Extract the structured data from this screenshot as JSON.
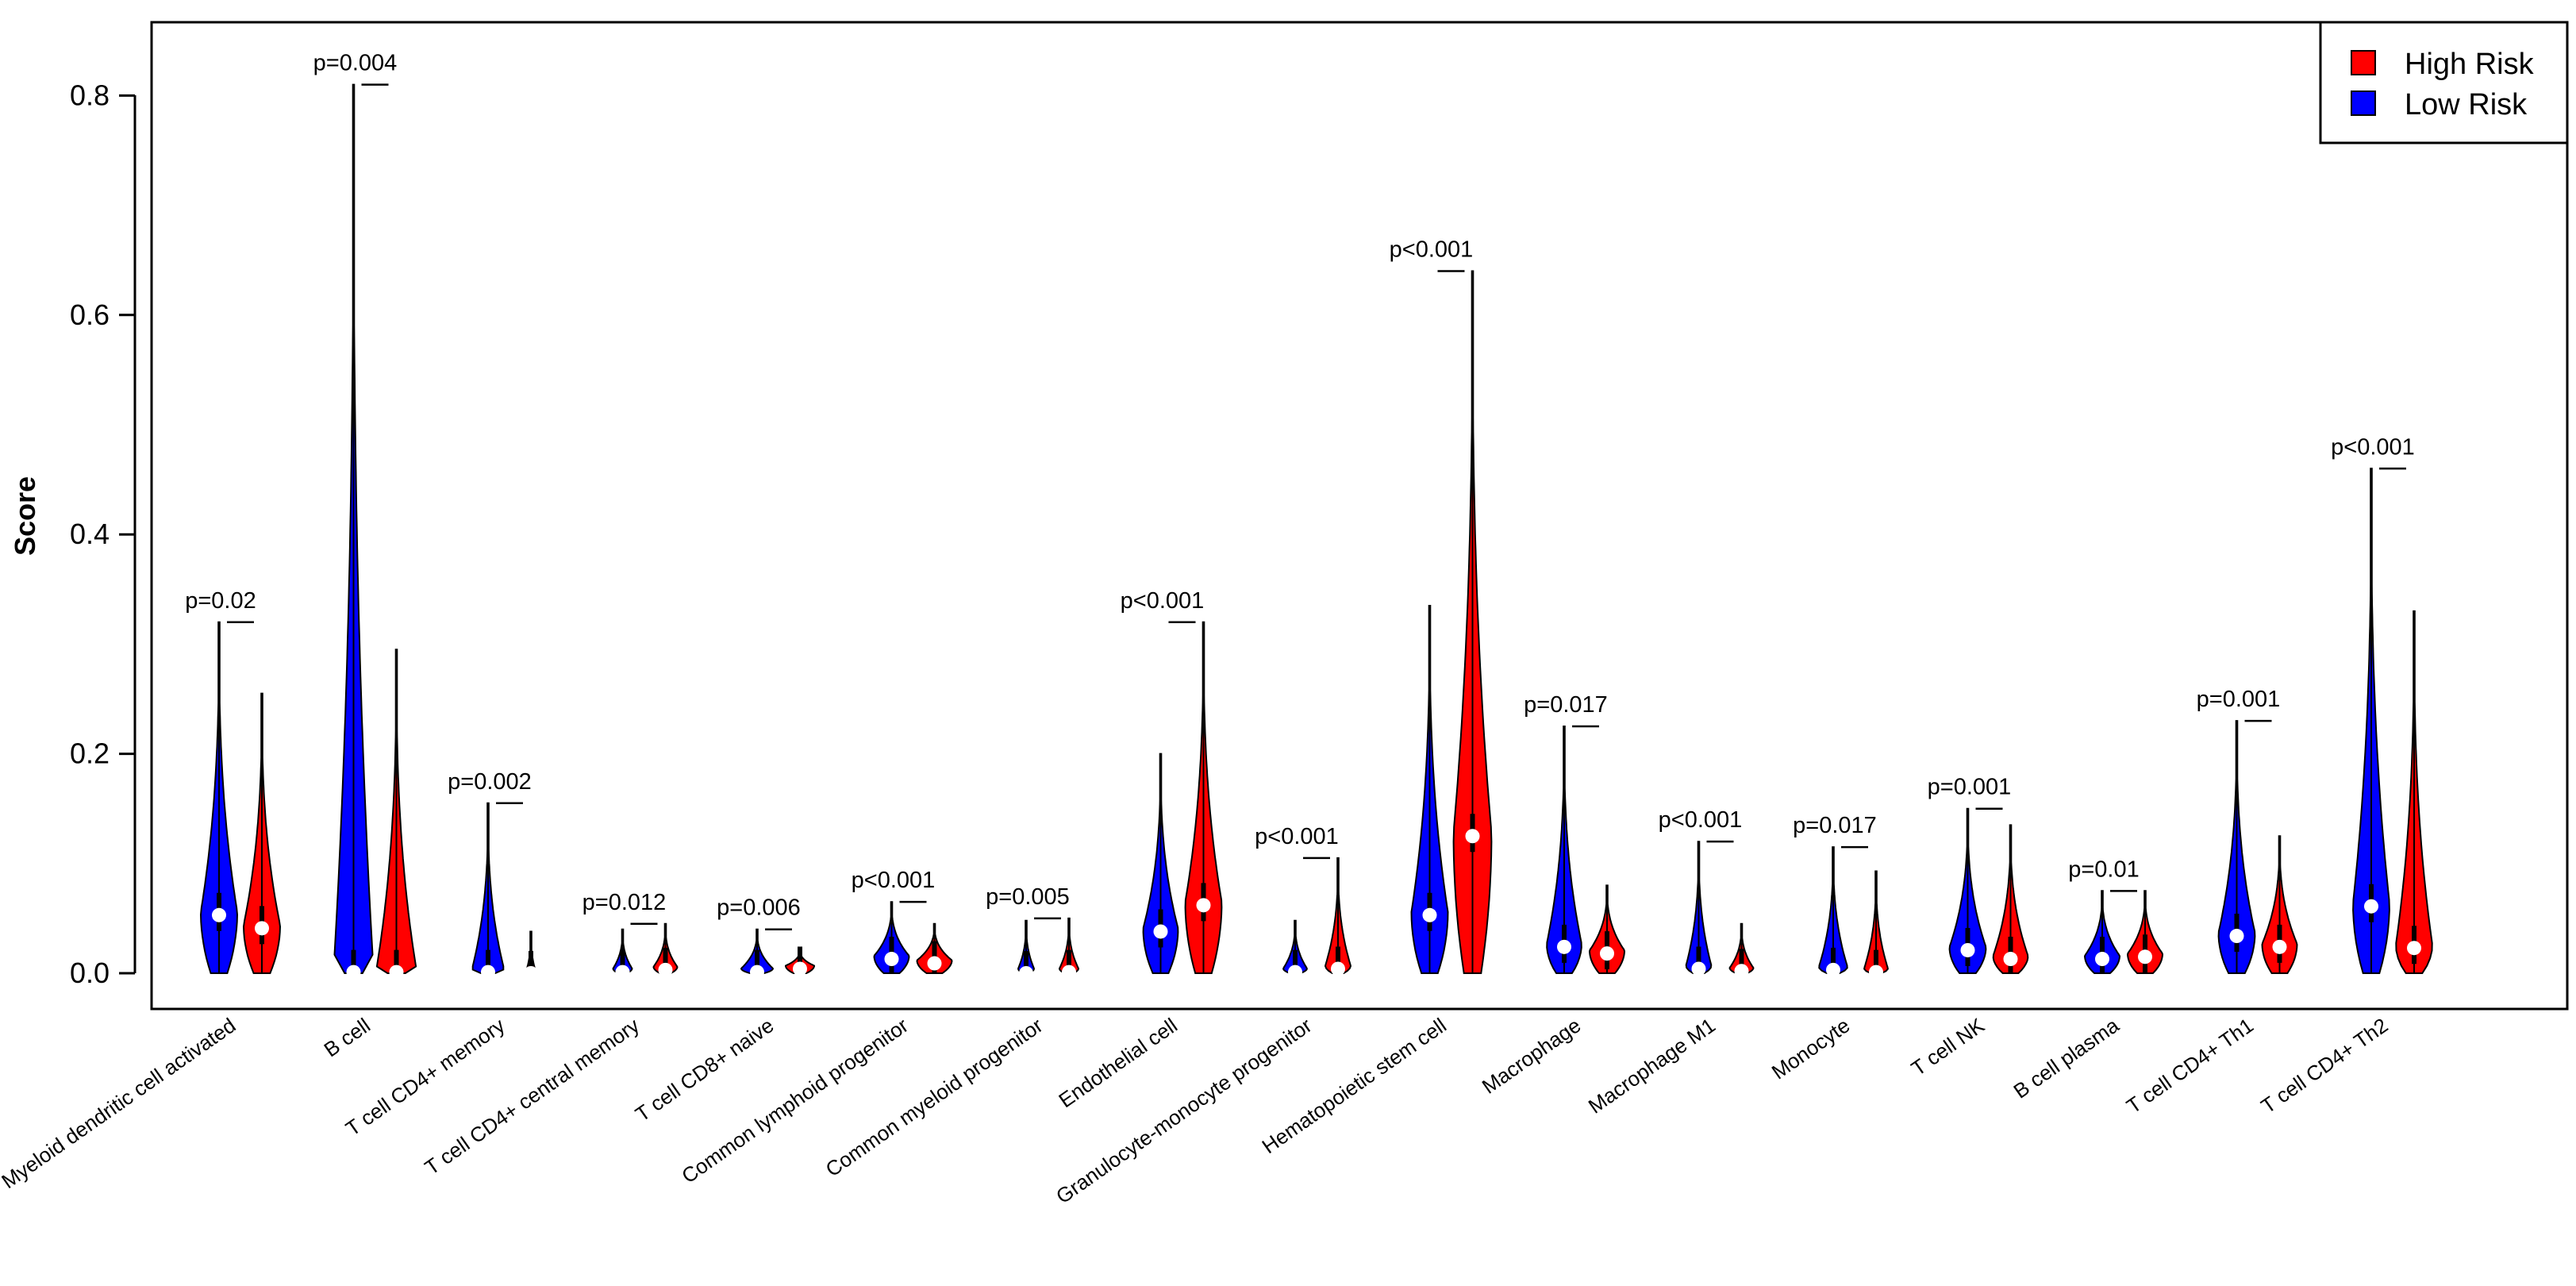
{
  "chart_data": {
    "type": "violin",
    "ylabel": "Score",
    "ylim": [
      0,
      0.85
    ],
    "yticks": [
      "0.0",
      "0.2",
      "0.4",
      "0.6",
      "0.8"
    ],
    "legend": {
      "placement": "top-right",
      "entries": [
        {
          "name": "High Risk",
          "color": "#ff0000"
        },
        {
          "name": "Low Risk",
          "color": "#0000ff"
        }
      ]
    },
    "series": [
      {
        "name": "Low Risk",
        "color": "#0000ff"
      },
      {
        "name": "High Risk",
        "color": "#ff0000"
      }
    ],
    "categories": [
      "Myeloid dendritic cell activated",
      "B cell",
      "T cell CD4+ memory",
      "T cell CD4+ central memory",
      "T cell CD8+ naive",
      "Common lymphoid progenitor",
      "Common myeloid progenitor",
      "Endothelial cell",
      "Granulocyte-monocyte progenitor",
      "Hematopoietic stem cell",
      "Macrophage",
      "Macrophage M1",
      "Monocyte",
      "T cell NK",
      "B cell plasma",
      "T cell CD4+ Th1",
      "T cell CD4+ Th2"
    ],
    "p_values": [
      "p=0.02",
      "p=0.004",
      "p=0.002",
      "p=0.012",
      "p=0.006",
      "p<0.001",
      "p=0.005",
      "p<0.001",
      "p<0.001",
      "p<0.001",
      "p=0.017",
      "p<0.001",
      "p=0.017",
      "p=0.001",
      "p=0.01",
      "p=0.001",
      "p<0.001"
    ],
    "low_risk": {
      "max": [
        0.32,
        0.81,
        0.155,
        0.04,
        0.04,
        0.065,
        0.048,
        0.2,
        0.048,
        0.335,
        0.225,
        0.12,
        0.115,
        0.15,
        0.075,
        0.23,
        0.46
      ],
      "median": [
        0.053,
        0.001,
        0.001,
        0.001,
        0.001,
        0.013,
        0.0,
        0.038,
        0.001,
        0.053,
        0.024,
        0.004,
        0.003,
        0.021,
        0.013,
        0.034,
        0.061
      ],
      "maxwidth": [
        0.023,
        0.025,
        0.02,
        0.012,
        0.02,
        0.022,
        0.01,
        0.022,
        0.015,
        0.023,
        0.022,
        0.016,
        0.018,
        0.023,
        0.022,
        0.023,
        0.023
      ]
    },
    "high_risk": {
      "max": [
        0.255,
        0.295,
        0.038,
        0.045,
        0.022,
        0.045,
        0.05,
        0.32,
        0.105,
        0.64,
        0.08,
        0.045,
        0.093,
        0.135,
        0.075,
        0.125,
        0.33
      ],
      "median": [
        0.041,
        0.001,
        0.0,
        0.003,
        0.004,
        0.009,
        0.001,
        0.062,
        0.004,
        0.125,
        0.018,
        0.002,
        0.001,
        0.013,
        0.015,
        0.024,
        0.023
      ],
      "maxwidth": [
        0.023,
        0.025,
        0.005,
        0.015,
        0.018,
        0.022,
        0.012,
        0.023,
        0.016,
        0.024,
        0.022,
        0.015,
        0.015,
        0.022,
        0.022,
        0.022,
        0.023
      ]
    }
  }
}
